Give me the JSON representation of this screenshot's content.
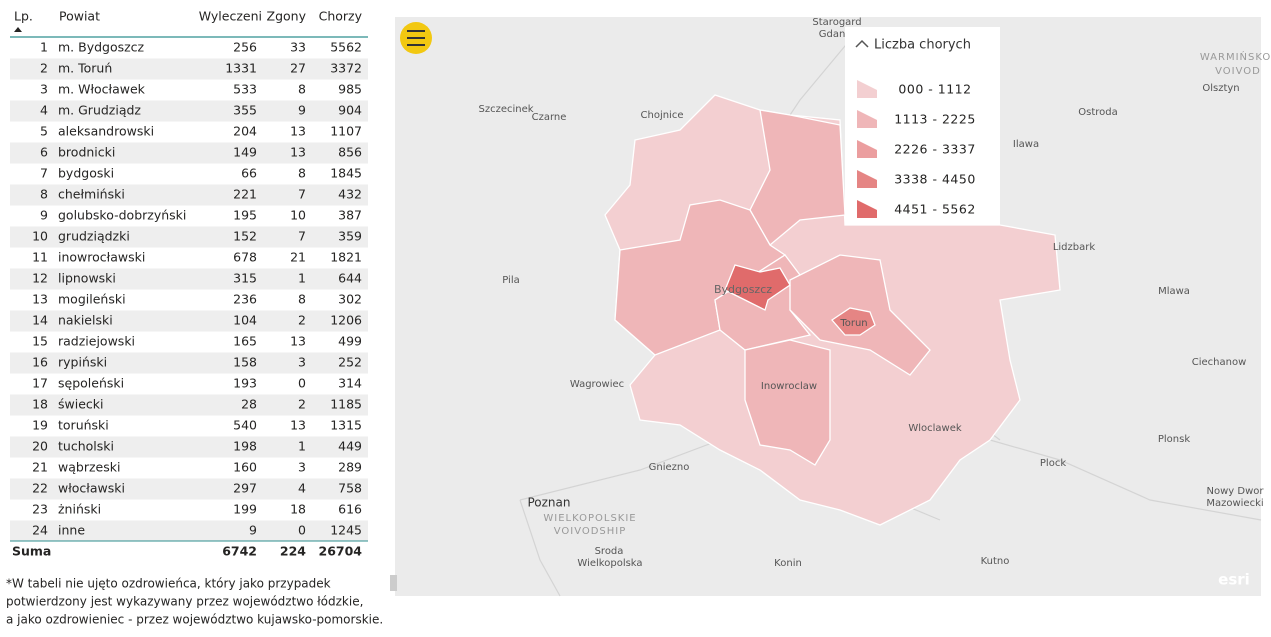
{
  "table": {
    "header": [
      "Lp.",
      "Powiat",
      "Wyleczeni",
      "Zgony",
      "Chorzy"
    ],
    "rows": [
      [
        1,
        "m. Bydgoszcz",
        256,
        33,
        5562
      ],
      [
        2,
        "m. Toruń",
        1331,
        27,
        3372
      ],
      [
        3,
        "m. Włocławek",
        533,
        8,
        985
      ],
      [
        4,
        "m. Grudziądz",
        355,
        9,
        904
      ],
      [
        5,
        "aleksandrowski",
        204,
        13,
        1107
      ],
      [
        6,
        "brodnicki",
        149,
        13,
        856
      ],
      [
        7,
        "bydgoski",
        66,
        8,
        1845
      ],
      [
        8,
        "chełmiński",
        221,
        7,
        432
      ],
      [
        9,
        "golubsko-dobrzyński",
        195,
        10,
        387
      ],
      [
        10,
        "grudziądzki",
        152,
        7,
        359
      ],
      [
        11,
        "inowrocławski",
        678,
        21,
        1821
      ],
      [
        12,
        "lipnowski",
        315,
        1,
        644
      ],
      [
        13,
        "mogileński",
        236,
        8,
        302
      ],
      [
        14,
        "nakielski",
        104,
        2,
        1206
      ],
      [
        15,
        "radziejowski",
        165,
        13,
        499
      ],
      [
        16,
        "rypiński",
        158,
        3,
        252
      ],
      [
        17,
        "sępoleński",
        193,
        0,
        314
      ],
      [
        18,
        "świecki",
        28,
        2,
        1185
      ],
      [
        19,
        "toruński",
        540,
        13,
        1315
      ],
      [
        20,
        "tucholski",
        198,
        1,
        449
      ],
      [
        21,
        "wąbrzeski",
        160,
        3,
        289
      ],
      [
        22,
        "włocławski",
        297,
        4,
        758
      ],
      [
        23,
        "żniński",
        199,
        18,
        616
      ],
      [
        24,
        "inne",
        9,
        0,
        1245
      ]
    ],
    "total": {
      "label": "Suma",
      "values": [
        6742,
        224,
        26704
      ]
    }
  },
  "footnote": [
    "*W tabeli nie ujęto ozdrowieńca, który jako przypadek",
    "potwierdzony jest wykazywany przez województwo łódzkie,",
    "a jako ozdrowieniec - przez województwo kujawsko-pomorskie."
  ],
  "map": {
    "legend": {
      "title": "Liczba chorych",
      "items": [
        {
          "label": "000 - 1112",
          "color": "#f3cfd1"
        },
        {
          "label": "1113 - 2225",
          "color": "#efb6b8"
        },
        {
          "label": "2226 - 3337",
          "color": "#eb9e9f"
        },
        {
          "label": "3338 - 4450",
          "color": "#e58584"
        },
        {
          "label": "4451 - 5562",
          "color": "#e06b6b"
        }
      ]
    },
    "places": [
      "Starogard",
      "Gdan",
      "WARMIŃSKO-",
      "VOIVOD",
      "Olsztyn",
      "Szczecinek",
      "Czarne",
      "Chojnice",
      "Ilawa",
      "Ostroda",
      "Lidzbark",
      "Pila",
      "Mlawa",
      "Bydgoszcz",
      "Torun",
      "Ciechanow",
      "Wagrowiec",
      "Inowroclaw",
      "Wloclawek",
      "Plonsk",
      "Gniezno",
      "Plock",
      "Poznan",
      "WIELKOPOLSKIE",
      "VOIVODSHIP",
      "Nowy Dwor",
      "Mazowiecki",
      "Sroda",
      "Wielkopolska",
      "Konin",
      "Kutno",
      "esri"
    ]
  }
}
